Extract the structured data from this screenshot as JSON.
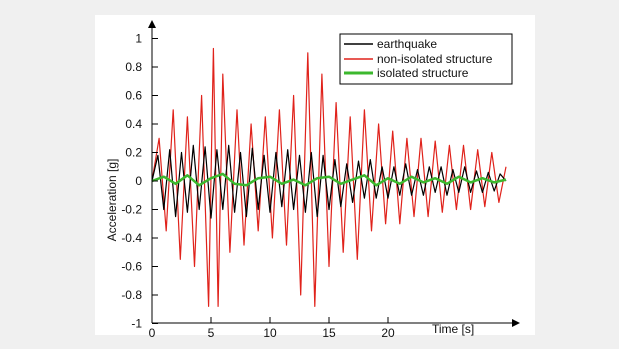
{
  "chart_data": {
    "type": "line",
    "title": "",
    "xlabel": "Time [s]",
    "ylabel": "Acceleration [g]",
    "xlim": [
      0,
      30
    ],
    "ylim": [
      -1,
      1.1
    ],
    "xticks": [
      "0",
      "5",
      "10",
      "15",
      "20"
    ],
    "yticks": [
      "1",
      "0.8",
      "0.6",
      "0.4",
      "0.2",
      "0",
      "-0.2",
      "-0.4",
      "-0.6",
      "-0.8",
      "-1"
    ],
    "legend_position": "top-right",
    "grid": false,
    "series": [
      {
        "name": "earthquake",
        "color": "#000000",
        "description": "dense oscillation, approx. +/-0.25 g, larger near 0-15 s",
        "x": [
          0,
          0.5,
          1,
          1.5,
          2,
          2.5,
          3,
          3.5,
          4,
          4.5,
          5,
          5.5,
          6,
          6.5,
          7,
          7.5,
          8,
          8.5,
          9,
          9.5,
          10,
          10.5,
          11,
          11.5,
          12,
          12.5,
          13,
          13.5,
          14,
          14.5,
          15,
          15.5,
          16,
          16.5,
          17,
          17.5,
          18,
          18.5,
          19,
          19.5,
          20,
          20.5,
          21,
          21.5,
          22,
          22.5,
          23,
          23.5,
          24,
          24.5,
          25,
          25.5,
          26,
          26.5,
          27,
          27.5,
          28,
          28.5,
          29,
          29.5,
          30
        ],
        "values": [
          0.0,
          0.18,
          -0.2,
          0.22,
          -0.25,
          0.2,
          -0.22,
          0.25,
          -0.2,
          0.24,
          -0.26,
          0.22,
          -0.2,
          0.25,
          -0.22,
          0.2,
          -0.25,
          0.23,
          -0.2,
          0.18,
          -0.22,
          0.2,
          -0.18,
          0.22,
          -0.2,
          0.18,
          -0.22,
          0.2,
          -0.25,
          0.18,
          -0.2,
          0.15,
          -0.18,
          0.12,
          -0.15,
          0.14,
          -0.12,
          0.15,
          -0.12,
          0.1,
          -0.12,
          0.1,
          -0.1,
          0.12,
          -0.1,
          0.08,
          -0.1,
          0.1,
          -0.08,
          0.1,
          -0.1,
          0.08,
          -0.08,
          0.1,
          -0.08,
          0.07,
          -0.08,
          0.06,
          -0.07,
          0.05,
          0.0
        ]
      },
      {
        "name": "non-isolated structure",
        "color": "#e0221b",
        "x": [
          0,
          0.6,
          1.2,
          1.8,
          2.4,
          3,
          3.6,
          4.2,
          4.8,
          5.2,
          5.6,
          6,
          6.6,
          7.2,
          7.8,
          8.4,
          9,
          9.6,
          10.2,
          10.8,
          11.4,
          12,
          12.6,
          13.2,
          13.8,
          14.4,
          15,
          15.6,
          16.2,
          16.8,
          17.4,
          18,
          18.6,
          19.2,
          19.8,
          20.4,
          21,
          21.6,
          22.2,
          22.8,
          23.4,
          24,
          24.6,
          25.2,
          25.8,
          26.4,
          27,
          27.6,
          28.2,
          28.8,
          29.4,
          30
        ],
        "values": [
          0.0,
          0.3,
          -0.35,
          0.5,
          -0.55,
          0.45,
          -0.6,
          0.6,
          -0.88,
          0.93,
          -0.88,
          0.75,
          -0.5,
          0.5,
          -0.45,
          0.4,
          -0.35,
          0.45,
          -0.4,
          0.5,
          -0.45,
          0.6,
          -0.8,
          0.9,
          -0.88,
          0.75,
          -0.6,
          0.55,
          -0.5,
          0.45,
          -0.55,
          0.5,
          -0.35,
          0.4,
          -0.3,
          0.35,
          -0.3,
          0.3,
          -0.25,
          0.3,
          -0.25,
          0.28,
          -0.22,
          0.25,
          -0.2,
          0.25,
          -0.2,
          0.22,
          -0.18,
          0.2,
          -0.15,
          0.1
        ]
      },
      {
        "name": "isolated structure",
        "color": "#3cb82e",
        "description": "low-amplitude response, approx. +/-0.05 g",
        "x": [
          0,
          1,
          2,
          3,
          4,
          5,
          6,
          7,
          8,
          9,
          10,
          11,
          12,
          13,
          14,
          15,
          16,
          17,
          18,
          19,
          20,
          21,
          22,
          23,
          24,
          25,
          26,
          27,
          28,
          29,
          30
        ],
        "values": [
          0.0,
          0.03,
          -0.02,
          0.04,
          -0.03,
          0.02,
          0.05,
          -0.02,
          -0.03,
          0.02,
          0.03,
          -0.02,
          0.01,
          -0.03,
          0.02,
          0.03,
          -0.02,
          0.01,
          0.04,
          -0.03,
          0.02,
          -0.02,
          0.03,
          -0.01,
          0.02,
          -0.02,
          0.03,
          -0.01,
          0.02,
          -0.01,
          0.01
        ]
      }
    ]
  }
}
